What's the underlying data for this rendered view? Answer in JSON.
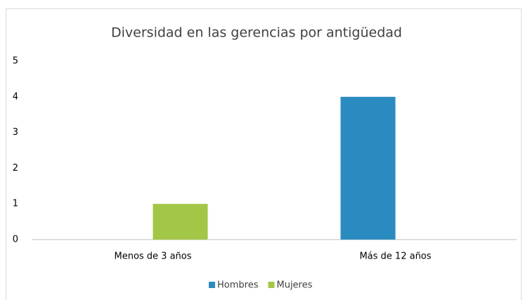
{
  "chart_data": {
    "type": "bar",
    "title": "Diversidad en las gerencias por antigüedad",
    "categories": [
      "Menos de 3 años",
      "Más de 12 años"
    ],
    "series": [
      {
        "name": "Hombres",
        "color": "#2a8bc0",
        "values": [
          0,
          4
        ]
      },
      {
        "name": "Mujeres",
        "color": "#a2c646",
        "values": [
          1,
          0
        ]
      }
    ],
    "ylim": [
      0,
      5
    ],
    "yticks": [
      0,
      1,
      2,
      3,
      4,
      5
    ],
    "grid": false,
    "legend": "bottom"
  }
}
